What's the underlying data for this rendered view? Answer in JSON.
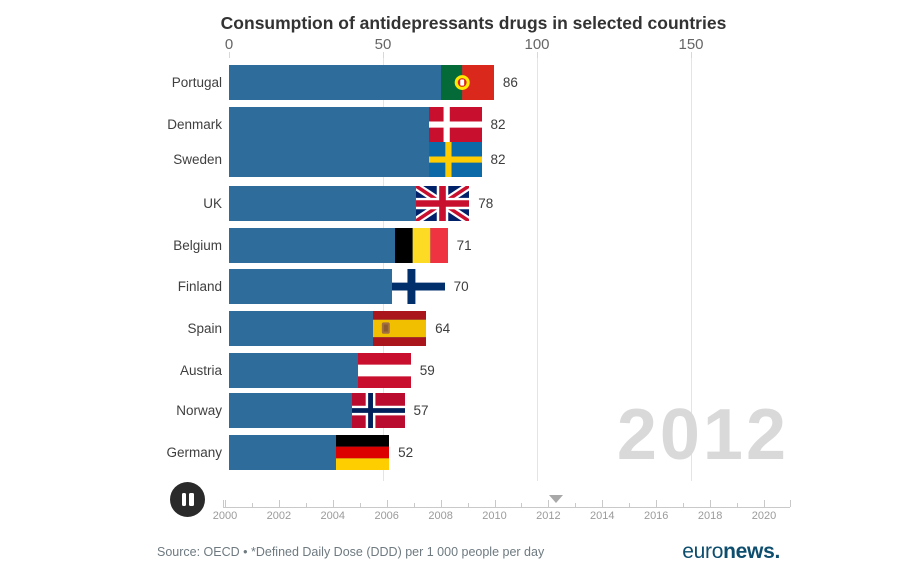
{
  "title": "Consumption of antidepressants drugs in selected countries",
  "colors": {
    "bar": "#2d6c9b",
    "year_watermark": "#d9d9d9",
    "brand": "#0d4d6e",
    "pause_button_bg": "#2a2a2a"
  },
  "top_axis": {
    "tick_labels": [
      "0",
      "50",
      "100",
      "150"
    ],
    "tick_values": [
      0,
      50,
      100,
      150
    ]
  },
  "chart_data": {
    "type": "bar",
    "orientation": "horizontal",
    "title": "Consumption of antidepressants drugs in selected countries",
    "xlabel": "Defined Daily Dose (DDD) per 1 000 people per day",
    "xlim": [
      0,
      165
    ],
    "gridlines": [
      50,
      100,
      150
    ],
    "grid": true,
    "legend": "none",
    "year": "2012",
    "categories": [
      "Portugal",
      "Denmark",
      "Sweden",
      "UK",
      "Belgium",
      "Finland",
      "Spain",
      "Austria",
      "Norway",
      "Germany"
    ],
    "values": [
      86,
      82,
      82,
      78,
      71,
      70,
      64,
      59,
      57,
      52
    ],
    "flags": [
      "pt",
      "dk",
      "se",
      "gb",
      "be",
      "fi",
      "es",
      "at",
      "no",
      "de"
    ]
  },
  "timeline": {
    "start_year": 2000,
    "end_year": 2021,
    "labeled_years": [
      "2000",
      "2002",
      "2004",
      "2006",
      "2008",
      "2010",
      "2012",
      "2014",
      "2016",
      "2018",
      "2020"
    ],
    "current_position": 2012.3
  },
  "controls": {
    "state": "playing",
    "button_icon": "pause-icon"
  },
  "footer": {
    "source": "Source: OECD • *Defined Daily Dose (DDD) per 1 000 people per day",
    "brand_regular": "euro",
    "brand_bold": "news."
  }
}
